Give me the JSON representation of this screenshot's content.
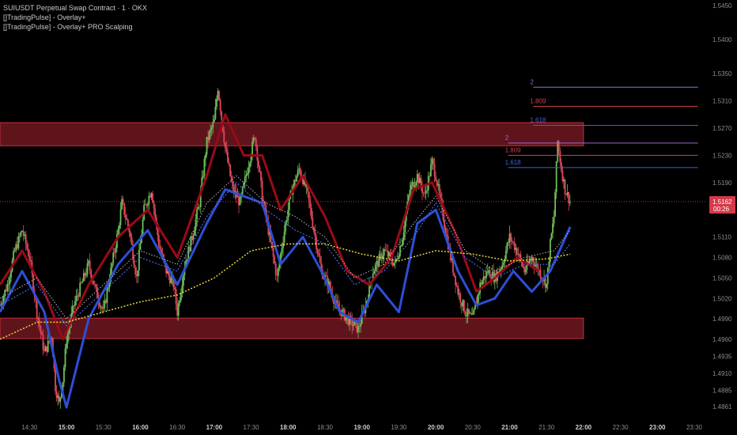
{
  "legend": {
    "title": "SUIUSDT Perpetual Swap Contract · 1 · OKX",
    "indicator_1": "[]TradingPulse] - Overlay+",
    "indicator_2": "[]TradingPulse] - Overlay+ PRO Scalping"
  },
  "colors": {
    "background": "#000000",
    "candle_up": "#6fbf5a",
    "candle_down": "#e0485a",
    "zone_fill": "#7a1a24",
    "zone_border": "#c0303c",
    "blue_line": "#2d4fd6",
    "red_line": "#9a0a18",
    "yellow_dotted": "#e6d53a",
    "blue_dotted": "#4a66e0",
    "white_dotted": "#bbbbbb",
    "fib_2": "#9a6ac8",
    "fib_1809": "#d2404e",
    "fib_1618": "#3f62d8",
    "price_tag": "#d33a4a",
    "axis_text": "#8c8c8c"
  },
  "chart_data": {
    "type": "line",
    "series_style": "candlestick",
    "x_axis": {
      "ticks": [
        "14:30",
        "15:00",
        "15:30",
        "16:00",
        "16:30",
        "17:00",
        "17:30",
        "18:00",
        "18:30",
        "19:00",
        "19:30",
        "20:00",
        "20:30",
        "21:00",
        "21:30",
        "22:00",
        "22:30",
        "23:00",
        "23:30"
      ],
      "bold_ticks": [
        "15:00",
        "16:00",
        "17:00",
        "18:00",
        "19:00",
        "20:00",
        "21:00",
        "22:00",
        "23:00"
      ],
      "range_hours": [
        14.1,
        23.65
      ]
    },
    "y_axis": {
      "ticks": [
        "1.5450",
        "1.5400",
        "1.5350",
        "1.5310",
        "1.5270",
        "1.5230",
        "1.5190",
        "1.5110",
        "1.5080",
        "1.5050",
        "1.5020",
        "1.4990",
        "1.4960",
        "1.4935",
        "1.4910",
        "1.4885",
        "1.4861"
      ],
      "ylim": [
        1.4845,
        1.5458
      ]
    },
    "current_price": {
      "value": 1.5162,
      "label": "1.5162",
      "countdown": "00:26"
    },
    "zones": [
      {
        "y_top": 1.5278,
        "y_bottom": 1.5244,
        "x_start": 14.1,
        "x_end": 22.0
      },
      {
        "y_top": 1.4991,
        "y_bottom": 1.4961,
        "x_start": 14.1,
        "x_end": 22.0
      }
    ],
    "fib_levels": [
      {
        "label": "2",
        "value": 1.533,
        "x_start": 21.32,
        "x_end": 23.55,
        "color_key": "fib_2"
      },
      {
        "label": "1.809",
        "value": 1.5302,
        "x_start": 21.32,
        "x_end": 23.55,
        "color_key": "fib_1809"
      },
      {
        "label": "1.618",
        "value": 1.5274,
        "x_start": 21.32,
        "x_end": 23.55,
        "color_key": "fib_1618"
      },
      {
        "label": "2",
        "value": 1.5248,
        "x_start": 20.98,
        "x_end": 23.55,
        "color_key": "fib_2"
      },
      {
        "label": "1.809",
        "value": 1.523,
        "x_start": 20.98,
        "x_end": 23.55,
        "color_key": "fib_1809"
      },
      {
        "label": "1.618",
        "value": 1.5212,
        "x_start": 20.98,
        "x_end": 23.55,
        "color_key": "fib_1618"
      }
    ],
    "price_path": [
      [
        14.1,
        1.501
      ],
      [
        14.2,
        1.504
      ],
      [
        14.3,
        1.509
      ],
      [
        14.4,
        1.512
      ],
      [
        14.5,
        1.508
      ],
      [
        14.6,
        1.5
      ],
      [
        14.7,
        1.494
      ],
      [
        14.8,
        1.4965
      ],
      [
        14.85,
        1.489
      ],
      [
        14.9,
        1.4865
      ],
      [
        14.95,
        1.49
      ],
      [
        15.0,
        1.496
      ],
      [
        15.1,
        1.501
      ],
      [
        15.2,
        1.504
      ],
      [
        15.3,
        1.507
      ],
      [
        15.4,
        1.503
      ],
      [
        15.5,
        1.5
      ],
      [
        15.6,
        1.506
      ],
      [
        15.7,
        1.512
      ],
      [
        15.75,
        1.516
      ],
      [
        15.85,
        1.512
      ],
      [
        15.95,
        1.505
      ],
      [
        16.05,
        1.515
      ],
      [
        16.15,
        1.518
      ],
      [
        16.25,
        1.51
      ],
      [
        16.35,
        1.506
      ],
      [
        16.45,
        1.504
      ],
      [
        16.5,
        1.5
      ],
      [
        16.6,
        1.507
      ],
      [
        16.7,
        1.511
      ],
      [
        16.8,
        1.516
      ],
      [
        16.9,
        1.525
      ],
      [
        17.0,
        1.528
      ],
      [
        17.05,
        1.533
      ],
      [
        17.15,
        1.524
      ],
      [
        17.25,
        1.518
      ],
      [
        17.35,
        1.516
      ],
      [
        17.45,
        1.521
      ],
      [
        17.55,
        1.526
      ],
      [
        17.65,
        1.517
      ],
      [
        17.75,
        1.511
      ],
      [
        17.85,
        1.505
      ],
      [
        17.95,
        1.512
      ],
      [
        18.05,
        1.518
      ],
      [
        18.15,
        1.521
      ],
      [
        18.25,
        1.518
      ],
      [
        18.35,
        1.512
      ],
      [
        18.45,
        1.506
      ],
      [
        18.55,
        1.504
      ],
      [
        18.65,
        1.501
      ],
      [
        18.8,
        1.499
      ],
      [
        18.95,
        1.4975
      ],
      [
        19.05,
        1.501
      ],
      [
        19.15,
        1.506
      ],
      [
        19.3,
        1.509
      ],
      [
        19.45,
        1.507
      ],
      [
        19.55,
        1.511
      ],
      [
        19.65,
        1.518
      ],
      [
        19.75,
        1.52
      ],
      [
        19.85,
        1.517
      ],
      [
        19.95,
        1.522
      ],
      [
        20.0,
        1.52
      ],
      [
        20.1,
        1.514
      ],
      [
        20.2,
        1.508
      ],
      [
        20.3,
        1.503
      ],
      [
        20.4,
        1.5
      ],
      [
        20.5,
        1.499
      ],
      [
        20.6,
        1.504
      ],
      [
        20.7,
        1.506
      ],
      [
        20.8,
        1.505
      ],
      [
        20.9,
        1.507
      ],
      [
        21.0,
        1.511
      ],
      [
        21.1,
        1.509
      ],
      [
        21.2,
        1.506
      ],
      [
        21.3,
        1.508
      ],
      [
        21.4,
        1.506
      ],
      [
        21.5,
        1.504
      ],
      [
        21.55,
        1.51
      ],
      [
        21.6,
        1.514
      ],
      [
        21.65,
        1.525
      ],
      [
        21.7,
        1.521
      ],
      [
        21.75,
        1.518
      ],
      [
        21.82,
        1.5162
      ]
    ],
    "overlays": {
      "red_line": [
        [
          14.1,
          1.504
        ],
        [
          14.4,
          1.509
        ],
        [
          14.7,
          1.503
        ],
        [
          14.95,
          1.496
        ],
        [
          15.3,
          1.504
        ],
        [
          15.7,
          1.511
        ],
        [
          16.1,
          1.515
        ],
        [
          16.5,
          1.508
        ],
        [
          16.9,
          1.52
        ],
        [
          17.15,
          1.529
        ],
        [
          17.4,
          1.523
        ],
        [
          17.65,
          1.523
        ],
        [
          17.9,
          1.515
        ],
        [
          18.2,
          1.52
        ],
        [
          18.5,
          1.514
        ],
        [
          18.8,
          1.506
        ],
        [
          19.1,
          1.504
        ],
        [
          19.4,
          1.508
        ],
        [
          19.7,
          1.518
        ],
        [
          19.95,
          1.519
        ],
        [
          20.25,
          1.512
        ],
        [
          20.55,
          1.503
        ],
        [
          20.8,
          1.505
        ],
        [
          21.1,
          1.508
        ],
        [
          21.4,
          1.506
        ]
      ],
      "blue_line": [
        [
          14.1,
          1.5
        ],
        [
          14.4,
          1.506
        ],
        [
          14.7,
          1.5
        ],
        [
          14.9,
          1.49
        ],
        [
          15.0,
          1.486
        ],
        [
          15.3,
          1.499
        ],
        [
          15.7,
          1.507
        ],
        [
          16.1,
          1.512
        ],
        [
          16.5,
          1.504
        ],
        [
          16.9,
          1.513
        ],
        [
          17.15,
          1.518
        ],
        [
          17.4,
          1.517
        ],
        [
          17.65,
          1.516
        ],
        [
          17.9,
          1.507
        ],
        [
          18.2,
          1.511
        ],
        [
          18.45,
          1.506
        ],
        [
          18.7,
          1.5
        ],
        [
          18.95,
          1.4985
        ],
        [
          19.2,
          1.504
        ],
        [
          19.5,
          1.5
        ],
        [
          19.75,
          1.513
        ],
        [
          20.0,
          1.515
        ],
        [
          20.3,
          1.506
        ],
        [
          20.55,
          1.501
        ],
        [
          20.8,
          1.502
        ],
        [
          21.05,
          1.506
        ],
        [
          21.3,
          1.503
        ],
        [
          21.55,
          1.506
        ],
        [
          21.82,
          1.5125
        ]
      ],
      "yellow_dotted": [
        [
          14.1,
          1.496
        ],
        [
          14.6,
          1.4985
        ],
        [
          15.0,
          1.4985
        ],
        [
          15.5,
          1.5
        ],
        [
          16.0,
          1.5015
        ],
        [
          16.5,
          1.5025
        ],
        [
          17.0,
          1.505
        ],
        [
          17.5,
          1.509
        ],
        [
          18.0,
          1.51
        ],
        [
          18.5,
          1.51
        ],
        [
          19.0,
          1.5085
        ],
        [
          19.5,
          1.5075
        ],
        [
          20.0,
          1.509
        ],
        [
          20.5,
          1.5085
        ],
        [
          21.0,
          1.5075
        ],
        [
          21.5,
          1.5078
        ],
        [
          21.82,
          1.5085
        ]
      ],
      "blue_dotted": [
        [
          14.1,
          1.501
        ],
        [
          14.6,
          1.504
        ],
        [
          15.0,
          1.498
        ],
        [
          15.5,
          1.503
        ],
        [
          16.0,
          1.508
        ],
        [
          16.5,
          1.506
        ],
        [
          16.9,
          1.514
        ],
        [
          17.3,
          1.519
        ],
        [
          17.7,
          1.515
        ],
        [
          18.1,
          1.512
        ],
        [
          18.5,
          1.51
        ],
        [
          18.9,
          1.504
        ],
        [
          19.3,
          1.506
        ],
        [
          19.7,
          1.511
        ],
        [
          20.0,
          1.516
        ],
        [
          20.4,
          1.508
        ],
        [
          20.8,
          1.505
        ],
        [
          21.2,
          1.507
        ],
        [
          21.6,
          1.507
        ],
        [
          21.82,
          1.51
        ]
      ],
      "white_dotted": [
        [
          14.1,
          1.502
        ],
        [
          14.6,
          1.505
        ],
        [
          15.0,
          1.499
        ],
        [
          15.5,
          1.504
        ],
        [
          16.0,
          1.509
        ],
        [
          16.5,
          1.507
        ],
        [
          16.9,
          1.516
        ],
        [
          17.3,
          1.52
        ],
        [
          17.7,
          1.516
        ],
        [
          18.1,
          1.514
        ],
        [
          18.5,
          1.511
        ],
        [
          18.9,
          1.505
        ],
        [
          19.3,
          1.507
        ],
        [
          19.7,
          1.513
        ],
        [
          20.0,
          1.517
        ],
        [
          20.4,
          1.509
        ],
        [
          20.8,
          1.506
        ],
        [
          21.2,
          1.508
        ],
        [
          21.6,
          1.509
        ],
        [
          21.82,
          1.512
        ]
      ]
    }
  }
}
